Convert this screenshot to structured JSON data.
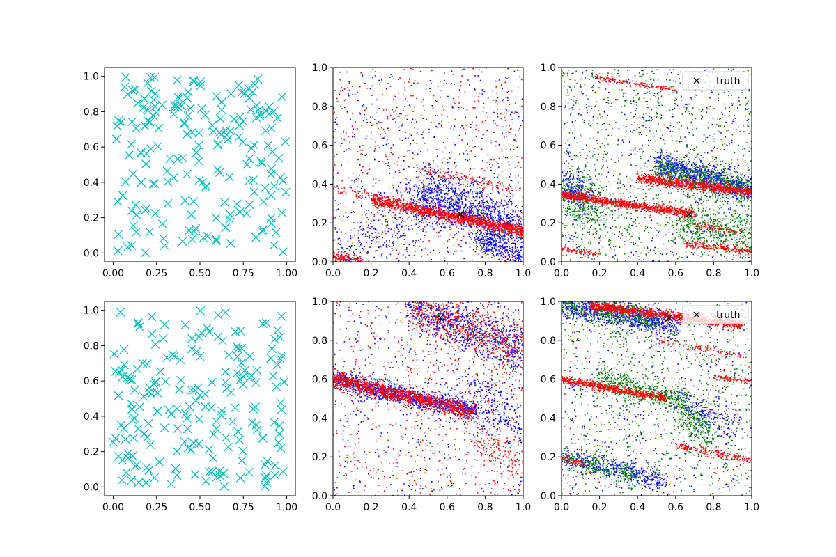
{
  "figure": {
    "layout": "2 rows x 3 columns of scatter panels"
  },
  "chart_data": [
    {
      "type": "scatter",
      "panel": "row1-col1",
      "title": "",
      "xlabel": "",
      "ylabel": "",
      "xlim": [
        -0.05,
        1.05
      ],
      "ylim": [
        -0.05,
        1.05
      ],
      "xticks": [
        "0.00",
        "0.25",
        "0.50",
        "0.75",
        "1.00"
      ],
      "yticks": [
        "0.0",
        "0.2",
        "0.4",
        "0.6",
        "0.8",
        "1.0"
      ],
      "legend": null,
      "series": [
        {
          "marker": "x",
          "color": "#00bfbf",
          "point_count": 200,
          "distribution": "uniform over [0,1]x[0,1]",
          "seed": 11
        }
      ]
    },
    {
      "type": "scatter",
      "panel": "row1-col2",
      "title": "",
      "xlabel": "",
      "ylabel": "",
      "xlim": [
        0,
        1
      ],
      "ylim": [
        0,
        1
      ],
      "xticks": [
        "0.0",
        "0.2",
        "0.4",
        "0.6",
        "0.8",
        "1.0"
      ],
      "yticks": [
        "0.0",
        "0.2",
        "0.4",
        "0.6",
        "0.8",
        "1.0"
      ],
      "legend": null,
      "truth": {
        "x": 0.67,
        "y": 0.245
      },
      "series": [
        {
          "marker": "dot",
          "color": "#0000ff",
          "background_count": 700,
          "bands": [
            {
              "x0": 0.45,
              "y0": 0.36,
              "x1": 1.0,
              "y1": 0.16,
              "spread": 0.07,
              "count": 1300
            },
            {
              "x0": 0.0,
              "y0": 0.04,
              "x1": 0.5,
              "y1": 0.26,
              "spread": 0.07,
              "count": 250
            },
            {
              "x0": 0.75,
              "y0": 0.12,
              "x1": 1.0,
              "y1": 0.02,
              "spread": 0.03,
              "count": 300
            }
          ]
        },
        {
          "marker": "dot",
          "color": "#ff0000",
          "background_count": 450,
          "bands": [
            {
              "x0": 0.2,
              "y0": 0.32,
              "x1": 1.0,
              "y1": 0.16,
              "spread": 0.015,
              "count": 1400
            },
            {
              "x0": 0.0,
              "y0": 0.38,
              "x1": 0.35,
              "y1": 0.3,
              "spread": 0.012,
              "count": 80
            },
            {
              "x0": 0.0,
              "y0": 0.03,
              "x1": 0.15,
              "y1": 0.0,
              "spread": 0.012,
              "count": 120
            },
            {
              "x0": 0.45,
              "y0": 0.48,
              "x1": 1.0,
              "y1": 0.36,
              "spread": 0.015,
              "count": 120
            }
          ]
        }
      ]
    },
    {
      "type": "scatter",
      "panel": "row1-col3",
      "title": "",
      "xlabel": "",
      "ylabel": "",
      "xlim": [
        0,
        1
      ],
      "ylim": [
        0,
        1
      ],
      "xticks": [
        "0.0",
        "0.2",
        "0.4",
        "0.6",
        "0.8",
        "1.0"
      ],
      "yticks": [
        "0.0",
        "0.2",
        "0.4",
        "0.6",
        "0.8",
        "1.0"
      ],
      "legend": {
        "label": "truth",
        "placement": "upper right",
        "marker": "x"
      },
      "truth": {
        "x": 0.67,
        "y": 0.245
      },
      "series": [
        {
          "marker": "dot",
          "color": "#0000ff",
          "background_count": 600,
          "bands": [
            {
              "x0": 0.5,
              "y0": 0.5,
              "x1": 1.0,
              "y1": 0.37,
              "spread": 0.035,
              "count": 900
            },
            {
              "x0": 0.0,
              "y0": 0.4,
              "x1": 0.15,
              "y1": 0.33,
              "spread": 0.05,
              "count": 250
            }
          ]
        },
        {
          "marker": "dot",
          "color": "#008000",
          "background_count": 900,
          "bands": [
            {
              "x0": 0.5,
              "y0": 0.48,
              "x1": 1.0,
              "y1": 0.36,
              "spread": 0.04,
              "count": 700
            },
            {
              "x0": 0.0,
              "y0": 0.35,
              "x1": 0.2,
              "y1": 0.25,
              "spread": 0.07,
              "count": 400
            },
            {
              "x0": 0.6,
              "y0": 0.22,
              "x1": 1.0,
              "y1": 0.12,
              "spread": 0.06,
              "count": 500
            }
          ]
        },
        {
          "marker": "dot",
          "color": "#ff0000",
          "background_count": 60,
          "bands": [
            {
              "x0": 0.0,
              "y0": 0.345,
              "x1": 0.7,
              "y1": 0.245,
              "spread": 0.01,
              "count": 1000
            },
            {
              "x0": 0.4,
              "y0": 0.43,
              "x1": 1.0,
              "y1": 0.36,
              "spread": 0.012,
              "count": 900
            },
            {
              "x0": 0.0,
              "y0": 0.065,
              "x1": 0.2,
              "y1": 0.04,
              "spread": 0.008,
              "count": 80
            },
            {
              "x0": 0.65,
              "y0": 0.09,
              "x1": 1.0,
              "y1": 0.055,
              "spread": 0.01,
              "count": 200
            },
            {
              "x0": 0.18,
              "y0": 0.95,
              "x1": 0.6,
              "y1": 0.88,
              "spread": 0.008,
              "count": 150
            },
            {
              "x0": 0.7,
              "y0": 0.19,
              "x1": 0.95,
              "y1": 0.15,
              "spread": 0.01,
              "count": 80
            }
          ]
        }
      ]
    },
    {
      "type": "scatter",
      "panel": "row2-col1",
      "title": "",
      "xlabel": "",
      "ylabel": "",
      "xlim": [
        -0.05,
        1.05
      ],
      "ylim": [
        -0.05,
        1.05
      ],
      "xticks": [
        "0.00",
        "0.25",
        "0.50",
        "0.75",
        "1.00"
      ],
      "yticks": [
        "0.0",
        "0.2",
        "0.4",
        "0.6",
        "0.8",
        "1.0"
      ],
      "legend": null,
      "series": [
        {
          "marker": "x",
          "color": "#00bfbf",
          "point_count": 200,
          "distribution": "uniform over [0,1]x[0,1]",
          "seed": 29
        }
      ]
    },
    {
      "type": "scatter",
      "panel": "row2-col2",
      "title": "",
      "xlabel": "",
      "ylabel": "",
      "xlim": [
        0,
        1
      ],
      "ylim": [
        0,
        1
      ],
      "xticks": [
        "0.0",
        "0.2",
        "0.4",
        "0.6",
        "0.8",
        "1.0"
      ],
      "yticks": [
        "0.0",
        "0.2",
        "0.4",
        "0.6",
        "0.8",
        "1.0"
      ],
      "legend": null,
      "truth": {
        "x": 0.565,
        "y": 0.915
      },
      "series": [
        {
          "marker": "dot",
          "color": "#0000ff",
          "background_count": 500,
          "bands": [
            {
              "x0": 0.0,
              "y0": 0.6,
              "x1": 0.75,
              "y1": 0.43,
              "spread": 0.025,
              "count": 1200
            },
            {
              "x0": 0.4,
              "y0": 0.98,
              "x1": 1.0,
              "y1": 0.75,
              "spread": 0.06,
              "count": 900
            },
            {
              "x0": 0.7,
              "y0": 0.55,
              "x1": 1.0,
              "y1": 0.35,
              "spread": 0.08,
              "count": 300
            }
          ]
        },
        {
          "marker": "dot",
          "color": "#ff0000",
          "background_count": 600,
          "bands": [
            {
              "x0": 0.0,
              "y0": 0.6,
              "x1": 0.75,
              "y1": 0.43,
              "spread": 0.02,
              "count": 1300
            },
            {
              "x0": 0.4,
              "y0": 0.98,
              "x1": 1.0,
              "y1": 0.75,
              "spread": 0.06,
              "count": 700
            },
            {
              "x0": 0.75,
              "y0": 0.3,
              "x1": 1.0,
              "y1": 0.15,
              "spread": 0.05,
              "count": 150
            }
          ]
        }
      ]
    },
    {
      "type": "scatter",
      "panel": "row2-col3",
      "title": "",
      "xlabel": "",
      "ylabel": "",
      "xlim": [
        0,
        1
      ],
      "ylim": [
        0,
        1
      ],
      "xticks": [
        "0.0",
        "0.2",
        "0.4",
        "0.6",
        "0.8",
        "1.0"
      ],
      "yticks": [
        "0.0",
        "0.2",
        "0.4",
        "0.6",
        "0.8",
        "1.0"
      ],
      "legend": {
        "label": "truth",
        "placement": "upper right",
        "marker": "x"
      },
      "truth": {
        "x": 0.565,
        "y": 0.915
      },
      "series": [
        {
          "marker": "dot",
          "color": "#0000ff",
          "background_count": 500,
          "bands": [
            {
              "x0": 0.0,
              "y0": 0.99,
              "x1": 0.6,
              "y1": 0.87,
              "spread": 0.035,
              "count": 1000
            },
            {
              "x0": 0.0,
              "y0": 0.2,
              "x1": 0.55,
              "y1": 0.07,
              "spread": 0.03,
              "count": 500
            },
            {
              "x0": 0.6,
              "y0": 0.5,
              "x1": 0.9,
              "y1": 0.35,
              "spread": 0.04,
              "count": 200
            }
          ]
        },
        {
          "marker": "dot",
          "color": "#008000",
          "background_count": 900,
          "bands": [
            {
              "x0": 0.0,
              "y0": 0.99,
              "x1": 0.5,
              "y1": 0.9,
              "spread": 0.03,
              "count": 400
            },
            {
              "x0": 0.2,
              "y0": 0.6,
              "x1": 0.65,
              "y1": 0.48,
              "spread": 0.035,
              "count": 500
            },
            {
              "x0": 0.0,
              "y0": 0.2,
              "x1": 0.4,
              "y1": 0.1,
              "spread": 0.025,
              "count": 250
            },
            {
              "x0": 0.6,
              "y0": 0.45,
              "x1": 0.8,
              "y1": 0.3,
              "spread": 0.05,
              "count": 250
            }
          ]
        },
        {
          "marker": "dot",
          "color": "#ff0000",
          "background_count": 80,
          "bands": [
            {
              "x0": 0.15,
              "y0": 0.98,
              "x1": 0.95,
              "y1": 0.88,
              "spread": 0.012,
              "count": 1200
            },
            {
              "x0": 0.0,
              "y0": 0.6,
              "x1": 0.55,
              "y1": 0.5,
              "spread": 0.01,
              "count": 700
            },
            {
              "x0": 0.8,
              "y0": 0.61,
              "x1": 1.0,
              "y1": 0.59,
              "spread": 0.008,
              "count": 80
            },
            {
              "x0": 0.6,
              "y0": 0.26,
              "x1": 1.0,
              "y1": 0.18,
              "spread": 0.01,
              "count": 200
            },
            {
              "x0": 0.0,
              "y0": 0.19,
              "x1": 0.12,
              "y1": 0.17,
              "spread": 0.01,
              "count": 60
            },
            {
              "x0": 0.5,
              "y0": 0.8,
              "x1": 0.95,
              "y1": 0.72,
              "spread": 0.01,
              "count": 100
            }
          ]
        }
      ]
    }
  ]
}
